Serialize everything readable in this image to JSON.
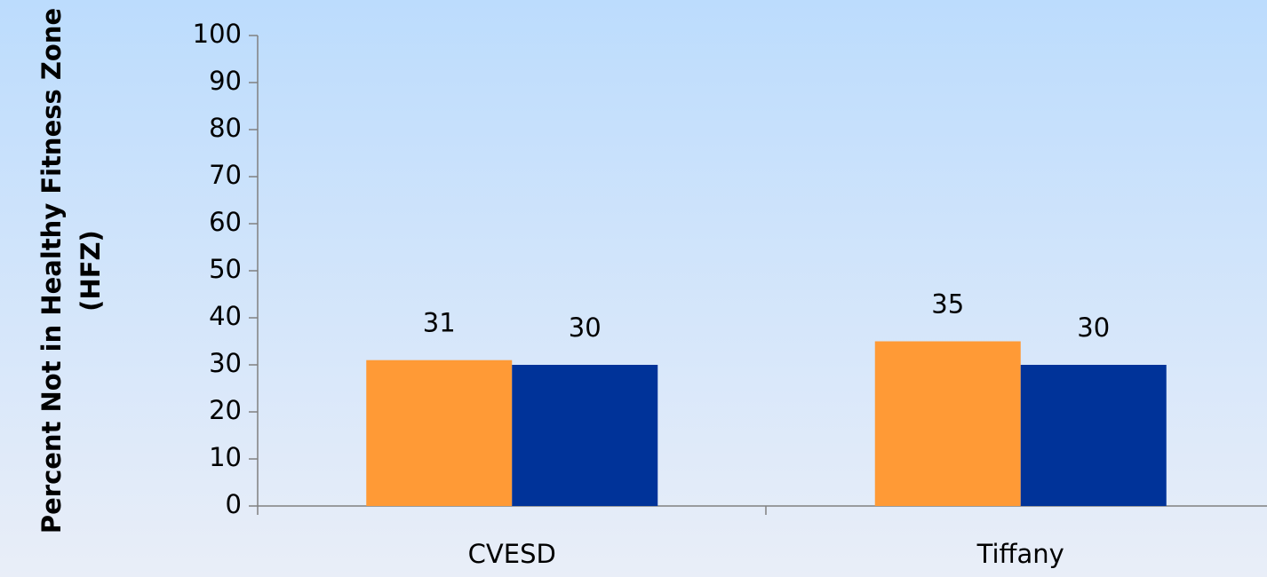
{
  "chart_data": {
    "type": "bar",
    "ylabel": "Percent Not in Healthy Fitness Zone (HFZ)",
    "categories": [
      "CVESD",
      "Tiffany"
    ],
    "series": [
      {
        "color": "#ff9a36",
        "values": [
          31,
          35
        ]
      },
      {
        "color": "#003399",
        "values": [
          30,
          30
        ]
      }
    ],
    "ylim": [
      0,
      100
    ],
    "yticks": [
      0,
      10,
      20,
      30,
      40,
      50,
      60,
      70,
      80,
      90,
      100
    ],
    "grid": false
  }
}
